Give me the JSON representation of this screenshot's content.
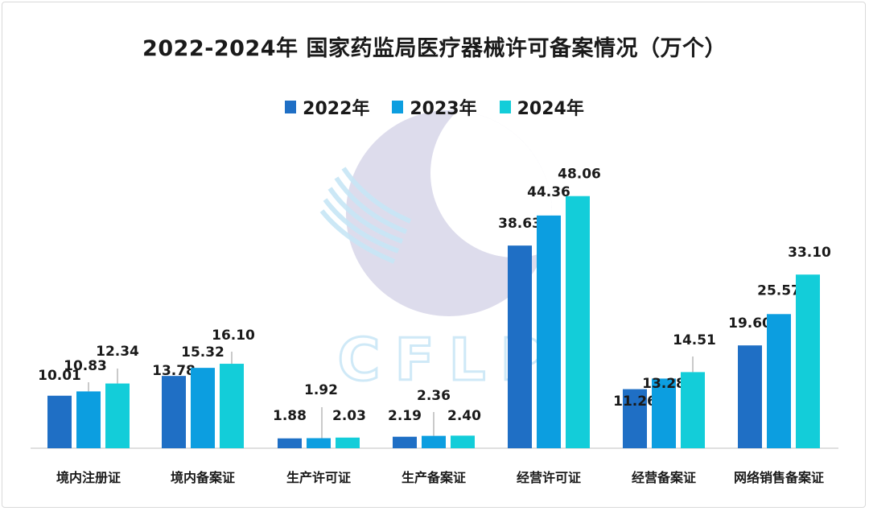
{
  "chart_data": {
    "type": "bar",
    "title": "2022-2024年 国家药监局医疗器械许可备案情况（万个）",
    "categories": [
      "境内注册证",
      "境内备案证",
      "生产许可证",
      "生产备案证",
      "经营许可证",
      "经营备案证",
      "网络销售备案证"
    ],
    "series": [
      {
        "name": "2022年",
        "color": "#1f6fc5",
        "values": [
          10.01,
          13.78,
          1.88,
          2.19,
          38.63,
          11.26,
          19.6
        ],
        "labels": [
          "10.01",
          "13.78",
          "1.88",
          "2.19",
          "38.63",
          "11.26",
          "19.60"
        ]
      },
      {
        "name": "2023年",
        "color": "#0c9ee0",
        "values": [
          10.83,
          15.32,
          1.92,
          2.36,
          44.36,
          13.28,
          25.57
        ],
        "labels": [
          "10.83",
          "15.32",
          "1.92",
          "2.36",
          "44.36",
          "13.28",
          "25.57"
        ]
      },
      {
        "name": "2024年",
        "color": "#13cdd9",
        "values": [
          12.34,
          16.1,
          2.03,
          2.4,
          48.06,
          14.51,
          33.1
        ],
        "labels": [
          "12.34",
          "16.10",
          "2.03",
          "2.40",
          "48.06",
          "14.51",
          "33.10"
        ]
      }
    ],
    "ylim": [
      0,
      52
    ],
    "xlabel": "",
    "ylabel": "",
    "grid": false,
    "legend_position": "top-center"
  },
  "watermark": {
    "text": "CFLP"
  }
}
